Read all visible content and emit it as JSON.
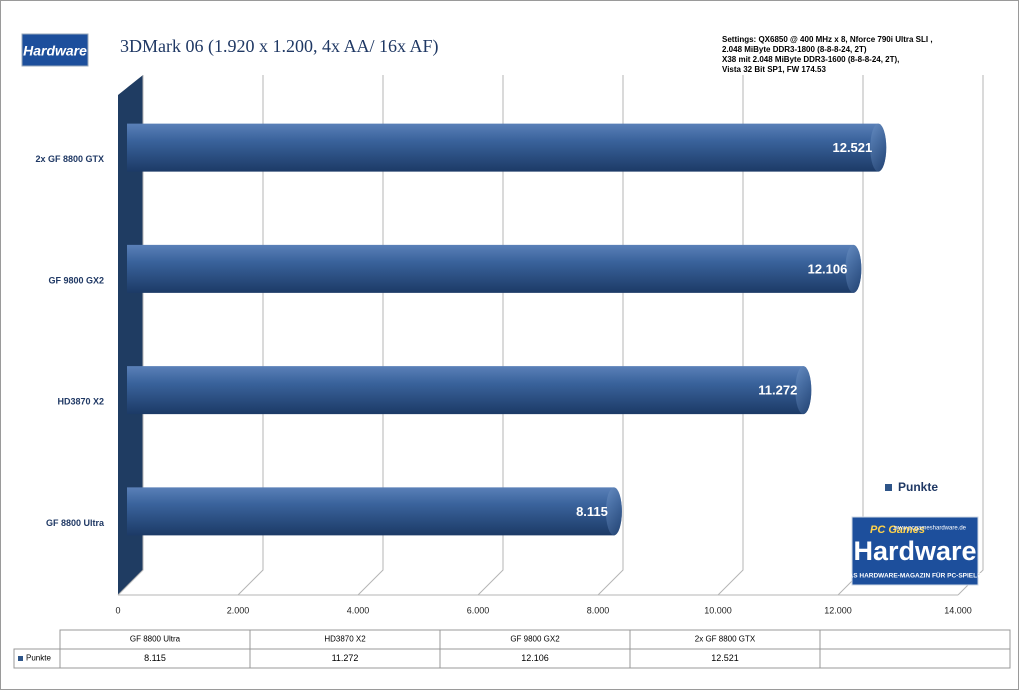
{
  "chart_data": {
    "type": "bar",
    "orientation": "horizontal",
    "title": "3DMark 06 (1.920 x 1.200, 4x AA/ 16x AF)",
    "annotation_lines": [
      "Settings: QX6850 @ 400 MHz x 8, Nforce 790i Ultra SLI ,",
      " 2.048 MiByte DDR3-1800 (8-8-8-24, 2T)",
      "X38 mit 2.048 MiByte DDR3-1600 (8-8-8-24, 2T),",
      "Vista 32 Bit SP1, FW 174.53"
    ],
    "categories": [
      "GF 8800  Ultra",
      "HD3870  X2",
      "GF 9800  GX2",
      "2x GF 8800  GTX"
    ],
    "series": [
      {
        "name": "Punkte",
        "color": "#2e5589",
        "values": [
          8115,
          11272,
          12106,
          12521
        ],
        "value_labels": [
          "8.115",
          "11.272",
          "12.106",
          "12.521"
        ]
      }
    ],
    "xlim": [
      0,
      14000
    ],
    "xticks": [
      0,
      {
        "value": 2000,
        "label": "2.000"
      },
      {
        "value": 4000,
        "label": "4.000"
      },
      {
        "value": 6000,
        "label": "6.000"
      },
      {
        "value": 8000,
        "label": "8.000"
      },
      {
        "value": 10000,
        "label": "10.000"
      },
      {
        "value": 12000,
        "label": "12.000"
      },
      {
        "value": 14000,
        "label": "14.000"
      }
    ],
    "grid": true,
    "legend": "right",
    "data_table": {
      "columns": [
        "GF 8800 Ultra",
        "HD3870 X2",
        "GF 9800 GX2",
        "2x GF 8800 GTX"
      ]
    }
  },
  "logos": {
    "small": "Hardware",
    "large": {
      "brand": "PC Games",
      "name": "Hardware",
      "url": "www.pcgameshardware.de",
      "slogan": "DAS HARDWARE-MAGAZIN FÜR PC-SPIELER"
    }
  }
}
